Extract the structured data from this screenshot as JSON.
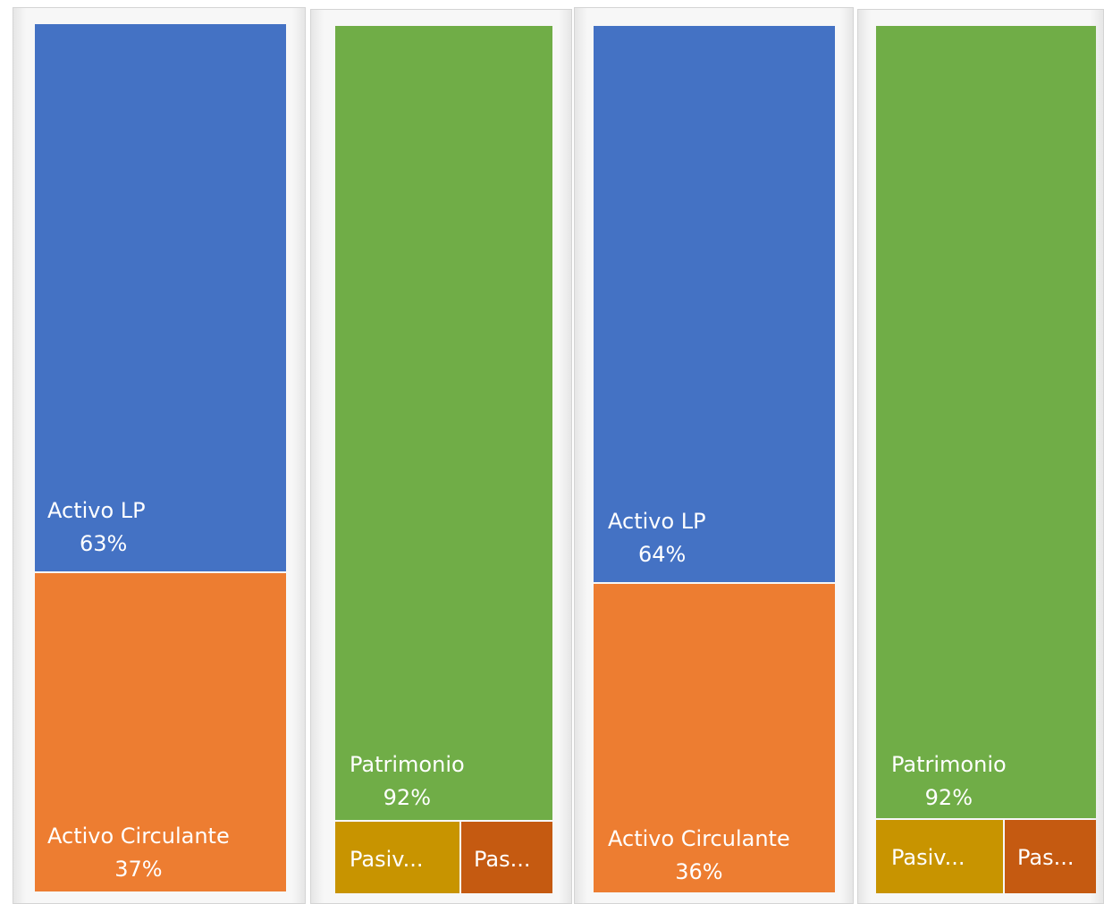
{
  "colors": {
    "activo_lp": "#4472C4",
    "activo_circulante": "#ED7D31",
    "patrimonio": "#70AD47",
    "pasivo_1": "#C89400",
    "pasivo_2": "#C55A11",
    "gap": "#ffffff"
  },
  "chart_data": [
    {
      "type": "treemap",
      "items": [
        {
          "name": "Activo LP",
          "display": "Activo LP",
          "percent_label": "63%",
          "value": 63,
          "color_key": "activo_lp"
        },
        {
          "name": "Activo Circulante",
          "display": "Activo Circulante",
          "percent_label": "37%",
          "value": 37,
          "color_key": "activo_circulante"
        }
      ]
    },
    {
      "type": "treemap",
      "items": [
        {
          "name": "Patrimonio",
          "display": "Patrimonio",
          "percent_label": "92%",
          "value": 92,
          "color_key": "patrimonio"
        },
        {
          "name": "Pasiv...",
          "display": "Pasiv...",
          "percent_label": "",
          "value": 4,
          "color_key": "pasivo_1"
        },
        {
          "name": "Pas...",
          "display": "Pas...",
          "percent_label": "",
          "value": 4,
          "color_key": "pasivo_2"
        }
      ]
    },
    {
      "type": "treemap",
      "items": [
        {
          "name": "Activo LP",
          "display": "Activo LP",
          "percent_label": "64%",
          "value": 64,
          "color_key": "activo_lp"
        },
        {
          "name": "Activo Circulante",
          "display": "Activo Circulante",
          "percent_label": "36%",
          "value": 36,
          "color_key": "activo_circulante"
        }
      ]
    },
    {
      "type": "treemap",
      "items": [
        {
          "name": "Patrimonio",
          "display": "Patrimonio",
          "percent_label": "92%",
          "value": 92,
          "color_key": "patrimonio"
        },
        {
          "name": "Pasiv...",
          "display": "Pasiv...",
          "percent_label": "",
          "value": 4,
          "color_key": "pasivo_1"
        },
        {
          "name": "Pas...",
          "display": "Pas...",
          "percent_label": "",
          "value": 4,
          "color_key": "pasivo_2"
        }
      ]
    }
  ]
}
